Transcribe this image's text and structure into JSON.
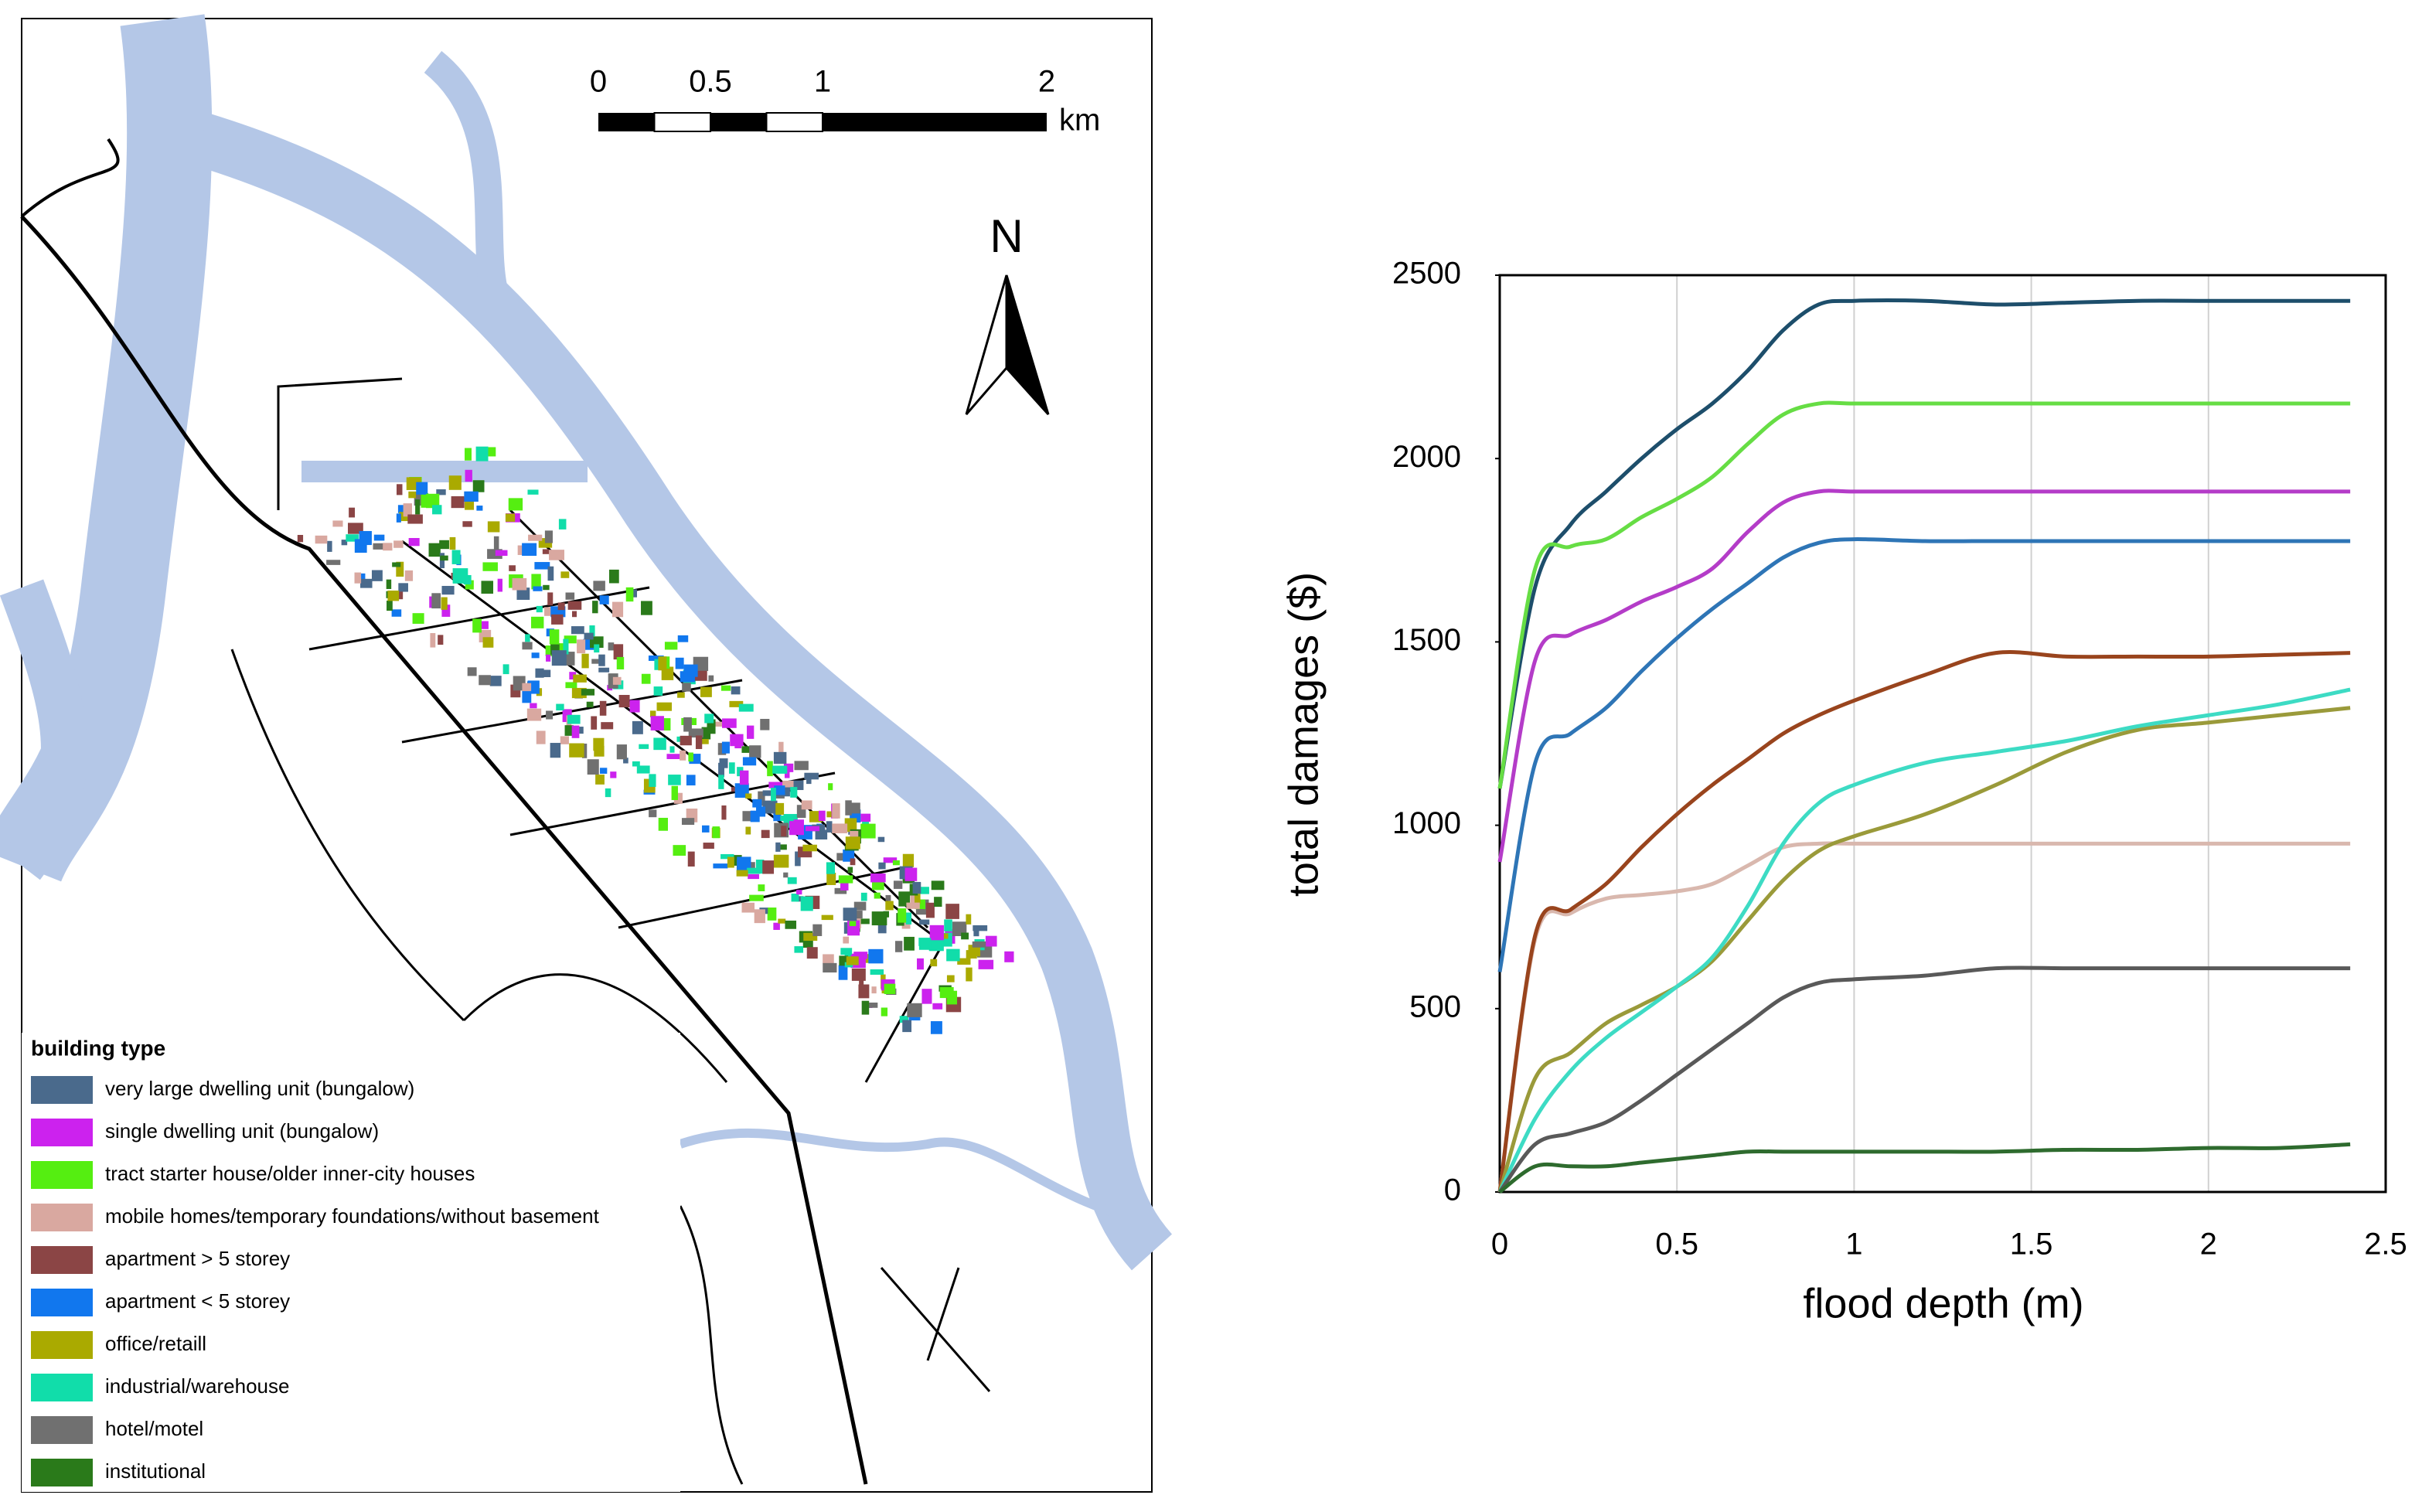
{
  "map": {
    "legend_title": "building type",
    "swatch_colors": [
      "#4a6a8c",
      "#cc22ee",
      "#55ee11",
      "#d9a8a0",
      "#8b4545",
      "#1177ee",
      "#aaaa00",
      "#11ddaa",
      "#707070",
      "#2a7a1a"
    ],
    "scale_ticks": [
      0,
      0.5,
      1,
      2
    ],
    "scale_unit": "km",
    "north": "N"
  },
  "chart_data": {
    "type": "line",
    "x_label": "flood depth (m)",
    "y_label": "total damages ($)",
    "xlim": [
      0,
      2.5
    ],
    "ylim": [
      0,
      2500
    ],
    "xticks": [
      0,
      0.5,
      1,
      1.5,
      2,
      2.5
    ],
    "yticks": [
      0,
      500,
      1000,
      1500,
      2000,
      2500
    ],
    "grid": "x",
    "x": [
      0,
      0.1,
      0.2,
      0.3,
      0.4,
      0.5,
      0.6,
      0.7,
      0.8,
      0.9,
      1.0,
      1.2,
      1.4,
      1.6,
      1.8,
      2.0,
      2.2,
      2.4
    ],
    "series": [
      {
        "name": "very large dwelling unit (bungalow)",
        "color": "#1d4e6b",
        "values": [
          1100,
          1650,
          1820,
          1910,
          2000,
          2080,
          2150,
          2240,
          2350,
          2420,
          2430,
          2430,
          2420,
          2425,
          2430,
          2430,
          2430,
          2430
        ]
      },
      {
        "name": "single dwelling unit (bungalow)",
        "color": "#b43cc8",
        "values": [
          900,
          1450,
          1520,
          1560,
          1610,
          1650,
          1700,
          1800,
          1880,
          1910,
          1910,
          1910,
          1910,
          1910,
          1910,
          1910,
          1910,
          1910
        ]
      },
      {
        "name": "tract starter house/older inner-city houses",
        "color": "#66dd44",
        "values": [
          1100,
          1700,
          1760,
          1780,
          1840,
          1890,
          1950,
          2040,
          2120,
          2150,
          2150,
          2150,
          2150,
          2150,
          2150,
          2150,
          2150,
          2150
        ]
      },
      {
        "name": "mobile homes/temporary foundations/without basement",
        "color": "#d9b8ae",
        "values": [
          0,
          690,
          760,
          800,
          810,
          820,
          840,
          890,
          940,
          950,
          950,
          950,
          950,
          950,
          950,
          950,
          950,
          950
        ]
      },
      {
        "name": "apartment > 5 storey",
        "color": "#99441d",
        "values": [
          0,
          700,
          770,
          840,
          940,
          1030,
          1110,
          1180,
          1250,
          1300,
          1340,
          1410,
          1470,
          1460,
          1460,
          1460,
          1465,
          1470
        ]
      },
      {
        "name": "apartment < 5 storey",
        "color": "#2e75b6",
        "values": [
          600,
          1170,
          1250,
          1320,
          1420,
          1510,
          1590,
          1660,
          1730,
          1770,
          1780,
          1775,
          1775,
          1775,
          1775,
          1775,
          1775,
          1775
        ]
      },
      {
        "name": "office/retaill",
        "color": "#9a9a3a",
        "values": [
          0,
          310,
          380,
          460,
          510,
          560,
          630,
          740,
          850,
          930,
          970,
          1030,
          1110,
          1200,
          1260,
          1280,
          1300,
          1320
        ]
      },
      {
        "name": "industrial/warehouse",
        "color": "#3ddbc4",
        "values": [
          0,
          200,
          330,
          420,
          490,
          560,
          640,
          780,
          950,
          1060,
          1110,
          1170,
          1200,
          1230,
          1270,
          1300,
          1330,
          1370
        ]
      },
      {
        "name": "hotel/motel",
        "color": "#595959",
        "values": [
          0,
          130,
          160,
          190,
          250,
          320,
          390,
          460,
          530,
          570,
          580,
          590,
          610,
          610,
          610,
          610,
          610,
          610
        ]
      },
      {
        "name": "institutional",
        "color": "#2e6b2e",
        "values": [
          0,
          70,
          70,
          70,
          80,
          90,
          100,
          110,
          110,
          110,
          110,
          110,
          110,
          115,
          115,
          120,
          120,
          130
        ]
      }
    ]
  }
}
